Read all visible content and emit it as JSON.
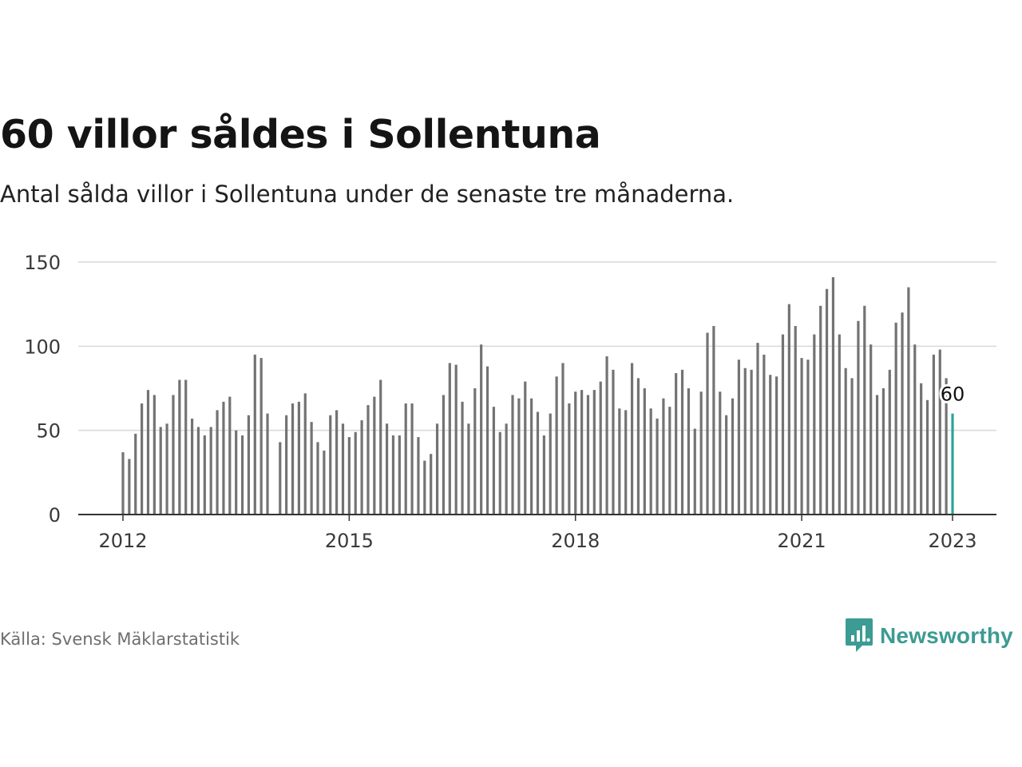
{
  "title": "60 villor såldes i Sollentuna",
  "subtitle": "Antal sålda villor i Sollentuna under de senaste tre månaderna.",
  "source": "Källa: Svensk Mäklarstatistik",
  "brand": {
    "name": "Newsworthy",
    "icon": "newsworthy-logo-icon",
    "color": "#3c9b93"
  },
  "chart_data": {
    "type": "bar",
    "title": "60 villor såldes i Sollentuna",
    "subtitle": "Antal sålda villor i Sollentuna under de senaste tre månaderna.",
    "xlabel": "",
    "ylabel": "",
    "x_start": "2012-01",
    "x_end": "2023-01",
    "ylim": [
      0,
      150
    ],
    "yticks": [
      0,
      50,
      100,
      150
    ],
    "xticks": [
      {
        "label": "2012",
        "month": "2012-01"
      },
      {
        "label": "2015",
        "month": "2015-01"
      },
      {
        "label": "2018",
        "month": "2018-01"
      },
      {
        "label": "2021",
        "month": "2021-01"
      },
      {
        "label": "2023",
        "month": "2023-01"
      }
    ],
    "grid": true,
    "bar_color": "#737373",
    "highlight_color": "#2aa39b",
    "highlight_month": "2023-01",
    "annotation": {
      "month": "2023-01",
      "text": "60"
    },
    "values": [
      37,
      33,
      48,
      66,
      74,
      71,
      52,
      54,
      71,
      80,
      80,
      57,
      52,
      47,
      52,
      62,
      67,
      70,
      50,
      47,
      59,
      95,
      93,
      60,
      null,
      43,
      59,
      66,
      67,
      72,
      55,
      43,
      38,
      59,
      62,
      54,
      46,
      49,
      56,
      65,
      70,
      80,
      54,
      47,
      47,
      66,
      66,
      46,
      32,
      36,
      54,
      71,
      90,
      89,
      67,
      54,
      75,
      101,
      88,
      64,
      49,
      54,
      71,
      69,
      79,
      69,
      61,
      47,
      60,
      82,
      90,
      66,
      73,
      74,
      71,
      74,
      79,
      94,
      86,
      63,
      62,
      90,
      81,
      75,
      63,
      57,
      69,
      64,
      84,
      86,
      75,
      51,
      73,
      108,
      112,
      73,
      59,
      69,
      92,
      87,
      86,
      102,
      95,
      83,
      82,
      107,
      125,
      112,
      93,
      92,
      107,
      124,
      134,
      141,
      107,
      87,
      81,
      115,
      124,
      101,
      71,
      75,
      86,
      114,
      120,
      135,
      101,
      78,
      68,
      95,
      98,
      81,
      60
    ]
  }
}
